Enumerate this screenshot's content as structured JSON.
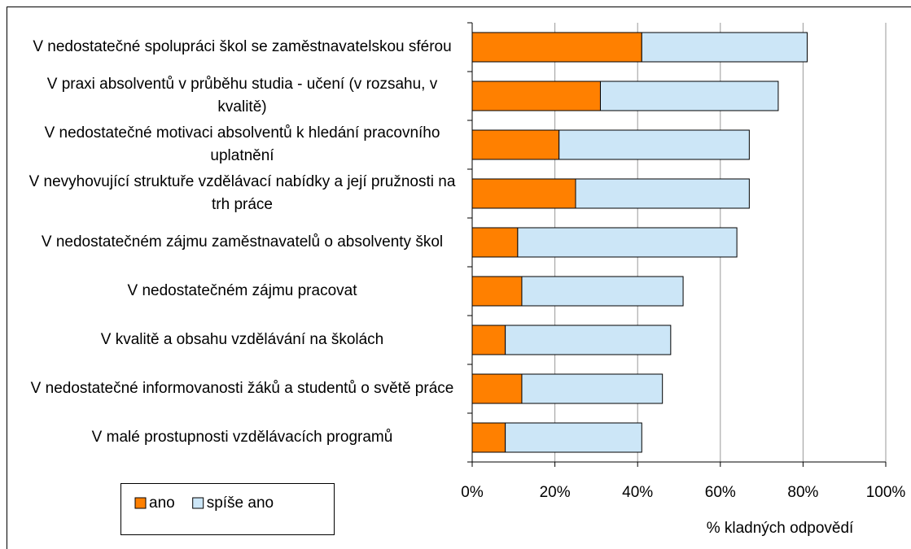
{
  "chart_data": {
    "type": "stacked_barh",
    "categories": [
      "V nedostatečné spolupráci škol se zaměstnavatelskou sférou",
      "V praxi absolventů v průběhu studia - učení (v rozsahu, v kvalitě)",
      "V nedostatečné motivaci absolventů k hledání pracovního uplatnění",
      "V nevyhovující struktuře vzdělávací nabídky a její pružnosti na trh práce",
      "V nedostatečném zájmu zaměstnavatelů o absolventy škol",
      "V nedostatečném zájmu pracovat",
      "V kvalitě a obsahu vzdělávání na školách",
      "V nedostatečné informovanosti žáků a studentů o světě práce",
      "V malé prostupnosti vzdělávacích programů"
    ],
    "series": [
      {
        "name": "ano",
        "color": "#ff8000",
        "values": [
          41,
          31,
          21,
          25,
          11,
          12,
          8,
          12,
          8
        ]
      },
      {
        "name": "spíše ano",
        "color": "#cce6f7",
        "values": [
          40,
          43,
          46,
          42,
          53,
          39,
          40,
          34,
          33
        ]
      }
    ],
    "xlim": [
      0,
      100
    ],
    "xticks": [
      {
        "value": 0,
        "label": "0%"
      },
      {
        "value": 20,
        "label": "20%"
      },
      {
        "value": 40,
        "label": "40%"
      },
      {
        "value": 60,
        "label": "60%"
      },
      {
        "value": 80,
        "label": "80%"
      },
      {
        "value": 100,
        "label": "100%"
      }
    ],
    "xlabel": "% kladných odpovědí",
    "grid": true,
    "legend": "bottom-left"
  }
}
